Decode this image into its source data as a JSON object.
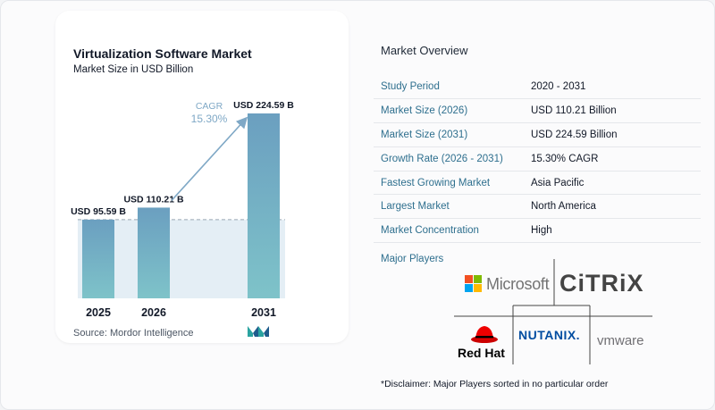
{
  "title": "Virtualization Software Market",
  "subtitle": "Market Size in USD Billion",
  "source": "Source:  Mordor Intelligence",
  "chart_data": {
    "type": "bar",
    "title": "Virtualization Software Market",
    "subtitle": "Market Size in USD Billion",
    "categories": [
      "2025",
      "2026",
      "2031"
    ],
    "values": [
      95.59,
      110.21,
      224.59
    ],
    "data_labels": [
      "USD 95.59 B",
      "USD 110.21 B",
      "USD 224.59 B"
    ],
    "annotation": {
      "label": "CAGR",
      "value": "15.30%"
    },
    "ylim": [
      0,
      224.59
    ],
    "grid": false,
    "colors": {
      "bar_top": "#6b9fc0",
      "bar_bottom": "#7ec3c9",
      "band": "#e4eef5",
      "arrow": "#7fa8c6",
      "cagr_text": "#7fa8c6"
    }
  },
  "overview": {
    "title": "Market Overview",
    "rows": [
      {
        "label": "Study Period",
        "value": "2020 - 2031"
      },
      {
        "label": "Market Size (2026)",
        "value": "USD 110.21 Billion"
      },
      {
        "label": "Market Size (2031)",
        "value": "USD 224.59 Billion"
      },
      {
        "label": "Growth Rate (2026 - 2031)",
        "value": "15.30% CAGR"
      },
      {
        "label": "Fastest Growing Market",
        "value": "Asia Pacific"
      },
      {
        "label": "Largest Market",
        "value": "North America"
      },
      {
        "label": "Market Concentration",
        "value": "High"
      }
    ]
  },
  "players": {
    "title": "Major Players",
    "logos": [
      "Microsoft",
      "CiTRiX",
      "Red Hat",
      "NUTANIX.",
      "vmware"
    ]
  },
  "disclaimer": "*Disclaimer: Major Players sorted in no particular order"
}
